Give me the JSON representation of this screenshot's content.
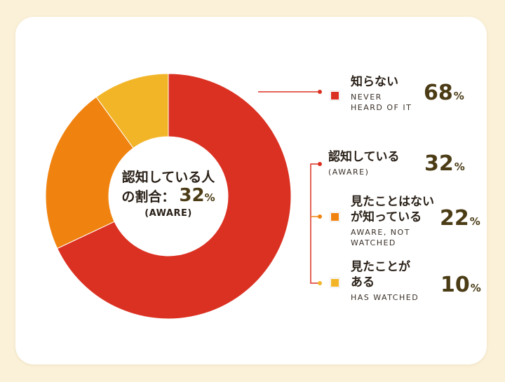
{
  "chart_data": {
    "type": "pie",
    "donut": true,
    "categories": [
      "知らない",
      "見たことはないが知っている",
      "見たことがある"
    ],
    "values": [
      68,
      22,
      10
    ],
    "unit": "%",
    "colors": [
      "#db3122",
      "#f08310",
      "#f2b528"
    ],
    "center_label": {
      "line1": "認知している人",
      "line2": "の割合：",
      "value": "32",
      "unit": "%",
      "sub": "(AWARE)"
    },
    "legend": [
      {
        "title_lines": [
          "知らない"
        ],
        "sub_lines": [
          "NEVER",
          "HEARD OF IT"
        ],
        "value": "68",
        "unit": "%",
        "color": "#db3122",
        "swatch": true
      },
      {
        "title_lines": [
          "認知している"
        ],
        "sub_lines": [
          "(AWARE)"
        ],
        "value": "32",
        "unit": "%",
        "color": "#db3122",
        "swatch": false
      },
      {
        "title_lines": [
          "見たことはない",
          "が知っている"
        ],
        "sub_lines": [
          "AWARE, NOT",
          "WATCHED"
        ],
        "value": "22",
        "unit": "%",
        "color": "#f08310",
        "swatch": true
      },
      {
        "title_lines": [
          "見たことが",
          "ある"
        ],
        "sub_lines": [
          "HAS WATCHED"
        ],
        "value": "10",
        "unit": "%",
        "color": "#f2b528",
        "swatch": true
      }
    ]
  }
}
